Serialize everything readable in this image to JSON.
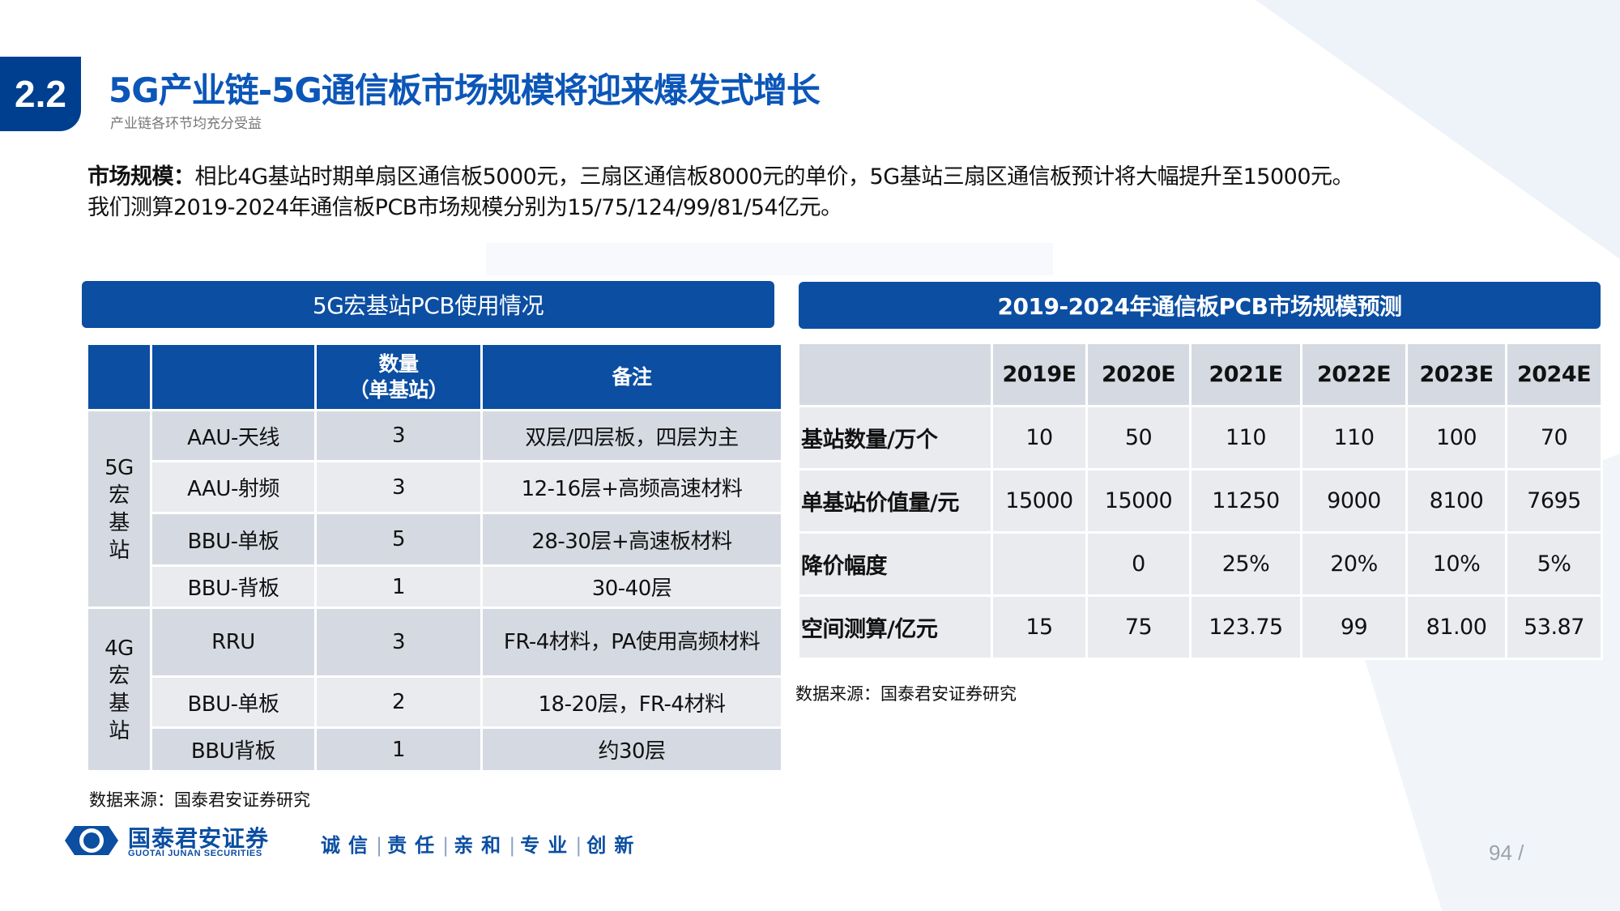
{
  "header": {
    "section_number": "2.2",
    "title": "5G产业链-5G通信板市场规模将迎来爆发式增长",
    "subtitle": "产业链各环节均充分受益"
  },
  "intro": {
    "label": "市场规模：",
    "line1": "相比4G基站时期单扇区通信板5000元，三扇区通信板8000元的单价，5G基站三扇区通信板预计将大幅提升至15000元。",
    "line2": "我们测算2019-2024年通信板PCB市场规模分别为15/75/124/99/81/54亿元。"
  },
  "left_panel": {
    "title": "5G宏基站PCB使用情况",
    "columns": [
      "",
      "",
      "数量",
      "（单基站）",
      "备注"
    ],
    "groups": [
      {
        "label": "5G宏基站",
        "rows": [
          {
            "item": "AAU-天线",
            "qty": "3",
            "note": "双层/四层板，四层为主"
          },
          {
            "item": "AAU-射频",
            "qty": "3",
            "note": "12-16层+高频高速材料"
          },
          {
            "item": "BBU-单板",
            "qty": "5",
            "note": "28-30层+高速板材料"
          },
          {
            "item": "BBU-背板",
            "qty": "1",
            "note": "30-40层"
          }
        ]
      },
      {
        "label": "4G宏基站",
        "rows": [
          {
            "item": "RRU",
            "qty": "3",
            "note": "FR-4材料，PA使用高频材料"
          },
          {
            "item": "BBU-单板",
            "qty": "2",
            "note": "18-20层，FR-4材料"
          },
          {
            "item": "BBU背板",
            "qty": "1",
            "note": "约30层"
          }
        ]
      }
    ],
    "source": "数据来源：国泰君安证券研究"
  },
  "right_panel": {
    "title": "2019-2024年通信板PCB市场规模预测",
    "years": [
      "2019E",
      "2020E",
      "2021E",
      "2022E",
      "2023E",
      "2024E"
    ],
    "rows": [
      {
        "label": "基站数量/万个",
        "values": [
          "10",
          "50",
          "110",
          "110",
          "100",
          "70"
        ]
      },
      {
        "label": "单基站价值量/元",
        "values": [
          "15000",
          "15000",
          "11250",
          "9000",
          "8100",
          "7695"
        ]
      },
      {
        "label": "降价幅度",
        "values": [
          "",
          "0",
          "25%",
          "20%",
          "10%",
          "5%"
        ]
      },
      {
        "label": "空间测算/亿元",
        "values": [
          "15",
          "75",
          "123.75",
          "99",
          "81.00",
          "53.87"
        ]
      }
    ],
    "source": "数据来源：国泰君安证券研究"
  },
  "footer": {
    "company_cn": "国泰君安证券",
    "company_en": "GUOTAI JUNAN SECURITIES",
    "slogan": [
      "诚信",
      "责任",
      "亲和",
      "专业",
      "创新"
    ],
    "page_number": "94",
    "page_sep": "/"
  },
  "colors": {
    "brand_blue": "#0b4ea2",
    "title_blue": "#0b56b8",
    "cell_dark": "#d5dae2",
    "cell_light": "#e9ebef"
  }
}
